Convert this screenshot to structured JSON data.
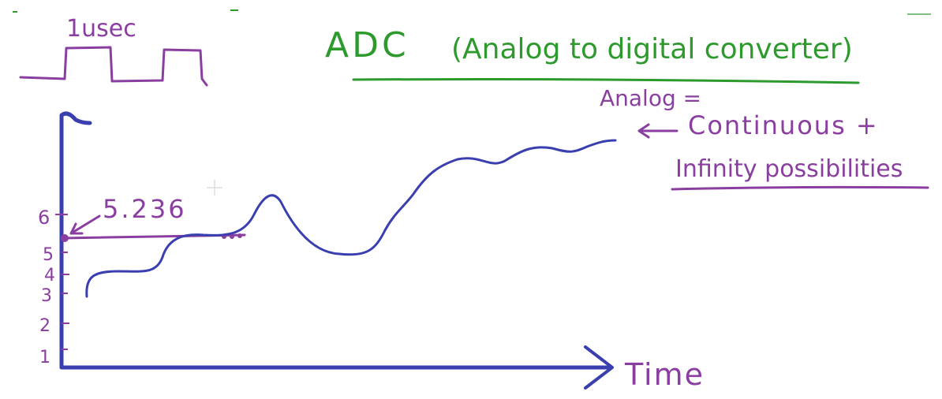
{
  "colors": {
    "green": "#2e9a2e",
    "purple": "#8a3fa0",
    "blue": "#3a3fb0",
    "background": "#ffffff"
  },
  "title": {
    "abbr": "ADC",
    "full": "(Analog to digital converter)"
  },
  "pulse_label": "1usec",
  "definition": {
    "term": "Analog =",
    "line1": "Continuous +",
    "line2": "Infinity possibilities"
  },
  "graph": {
    "x_axis_label": "Time",
    "y_ticks": [
      "1",
      "2",
      "3",
      "4",
      "5",
      "6"
    ],
    "sample_value": "5.236"
  }
}
